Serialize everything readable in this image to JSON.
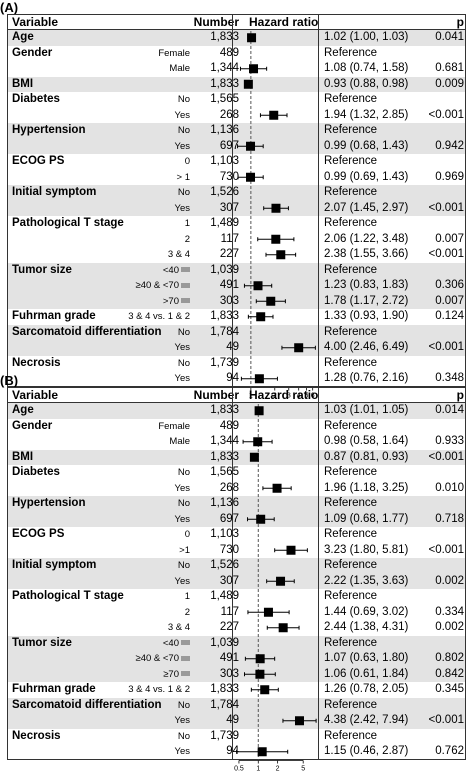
{
  "chart_data": [
    {
      "type": "forest",
      "panel": "(A)",
      "headers": {
        "variable": "Variable",
        "number": "Number",
        "hazard_ratio": "Hazard ratio",
        "p": "p"
      },
      "x_scale": "log",
      "xlim": [
        0.65,
        7
      ],
      "reference_line": 1,
      "x_ticks": [
        1,
        2,
        3,
        4,
        5,
        6
      ],
      "rows": [
        {
          "variable": "Age",
          "sub": "",
          "number": "1,833",
          "hr": 1.02,
          "lo": 1.0,
          "hi": 1.03,
          "hr_text": "1.02 (1.00, 1.03)",
          "p": "0.041"
        },
        {
          "variable": "Gender",
          "sub": "Female",
          "number": "489",
          "hr": null,
          "hr_text": "Reference",
          "p": ""
        },
        {
          "variable": "",
          "sub": "Male",
          "number": "1,344",
          "hr": 1.08,
          "lo": 0.74,
          "hi": 1.58,
          "hr_text": "1.08 (0.74, 1.58)",
          "p": "0.681"
        },
        {
          "variable": "BMI",
          "sub": "",
          "number": "1,833",
          "hr": 0.93,
          "lo": 0.88,
          "hi": 0.98,
          "hr_text": "0.93 (0.88, 0.98)",
          "p": "0.009"
        },
        {
          "variable": "Diabetes",
          "sub": "No",
          "number": "1,565",
          "hr": null,
          "hr_text": "Reference",
          "p": ""
        },
        {
          "variable": "",
          "sub": "Yes",
          "number": "268",
          "hr": 1.94,
          "lo": 1.32,
          "hi": 2.85,
          "hr_text": "1.94 (1.32, 2.85)",
          "p": "<0.001"
        },
        {
          "variable": "Hypertension",
          "sub": "No",
          "number": "1,136",
          "hr": null,
          "hr_text": "Reference",
          "p": ""
        },
        {
          "variable": "",
          "sub": "Yes",
          "number": "697",
          "hr": 0.99,
          "lo": 0.68,
          "hi": 1.43,
          "hr_text": "0.99 (0.68, 1.43)",
          "p": "0.942"
        },
        {
          "variable": "ECOG PS",
          "sub": "0",
          "number": "1,103",
          "hr": null,
          "hr_text": "Reference",
          "p": ""
        },
        {
          "variable": "",
          "sub": "> 1",
          "number": "730",
          "hr": 0.99,
          "lo": 0.69,
          "hi": 1.43,
          "hr_text": "0.99 (0.69, 1.43)",
          "p": "0.969"
        },
        {
          "variable": "Initial symptom",
          "sub": "No",
          "number": "1,526",
          "hr": null,
          "hr_text": "Reference",
          "p": ""
        },
        {
          "variable": "",
          "sub": "Yes",
          "number": "307",
          "hr": 2.07,
          "lo": 1.45,
          "hi": 2.97,
          "hr_text": "2.07 (1.45, 2.97)",
          "p": "<0.001"
        },
        {
          "variable": "Pathological T stage",
          "sub": "1",
          "number": "1,489",
          "hr": null,
          "hr_text": "Reference",
          "p": ""
        },
        {
          "variable": "",
          "sub": "2",
          "number": "117",
          "hr": 2.06,
          "lo": 1.22,
          "hi": 3.48,
          "hr_text": "2.06 (1.22, 3.48)",
          "p": "0.007"
        },
        {
          "variable": "",
          "sub": "3 & 4",
          "number": "227",
          "hr": 2.38,
          "lo": 1.55,
          "hi": 3.66,
          "hr_text": "2.38 (1.55, 3.66)",
          "p": "<0.001"
        },
        {
          "variable": "Tumor size",
          "sub": "<40",
          "number": "1,039",
          "hr": null,
          "hr_text": "Reference",
          "p": "",
          "mark": true
        },
        {
          "variable": "",
          "sub": "≥40 & <70",
          "number": "491",
          "hr": 1.23,
          "lo": 0.83,
          "hi": 1.83,
          "hr_text": "1.23 (0.83, 1.83)",
          "p": "0.306",
          "mark": true
        },
        {
          "variable": "",
          "sub": ">70",
          "number": "303",
          "hr": 1.78,
          "lo": 1.17,
          "hi": 2.72,
          "hr_text": "1.78 (1.17, 2.72)",
          "p": "0.007",
          "mark": true
        },
        {
          "variable": "Fuhrman grade",
          "sub": "3 & 4 vs. 1 & 2",
          "number": "1,833",
          "hr": 1.33,
          "lo": 0.93,
          "hi": 1.9,
          "hr_text": "1.33 (0.93, 1.90)",
          "p": "0.124"
        },
        {
          "variable": "Sarcomatoid differentiation",
          "sub": "No",
          "number": "1,784",
          "hr": null,
          "hr_text": "Reference",
          "p": ""
        },
        {
          "variable": "",
          "sub": "Yes",
          "number": "49",
          "hr": 4.0,
          "lo": 2.46,
          "hi": 6.49,
          "hr_text": "4.00 (2.46, 6.49)",
          "p": "<0.001"
        },
        {
          "variable": "Necrosis",
          "sub": "No",
          "number": "1,739",
          "hr": null,
          "hr_text": "Reference",
          "p": ""
        },
        {
          "variable": "",
          "sub": "Yes",
          "number": "94",
          "hr": 1.28,
          "lo": 0.76,
          "hi": 2.16,
          "hr_text": "1.28 (0.76, 2.16)",
          "p": "0.348"
        }
      ]
    },
    {
      "type": "forest",
      "panel": "(B)",
      "headers": {
        "variable": "Variable",
        "number": "Number",
        "hazard_ratio": "Hazard ratio",
        "p": "p"
      },
      "x_scale": "log",
      "xlim": [
        0.45,
        8.5
      ],
      "reference_line": 1,
      "x_ticks": [
        0.5,
        1,
        2,
        5
      ],
      "rows": [
        {
          "variable": "Age",
          "sub": "",
          "number": "1,833",
          "hr": 1.03,
          "lo": 1.01,
          "hi": 1.05,
          "hr_text": "1.03 (1.01, 1.05)",
          "p": "0.014"
        },
        {
          "variable": "Gender",
          "sub": "Female",
          "number": "489",
          "hr": null,
          "hr_text": "Reference",
          "p": ""
        },
        {
          "variable": "",
          "sub": "Male",
          "number": "1,344",
          "hr": 0.98,
          "lo": 0.58,
          "hi": 1.64,
          "hr_text": "0.98 (0.58, 1.64)",
          "p": "0.933"
        },
        {
          "variable": "BMI",
          "sub": "",
          "number": "1,833",
          "hr": 0.87,
          "lo": 0.81,
          "hi": 0.93,
          "hr_text": "0.87 (0.81, 0.93)",
          "p": "<0.001"
        },
        {
          "variable": "Diabetes",
          "sub": "No",
          "number": "1,565",
          "hr": null,
          "hr_text": "Reference",
          "p": ""
        },
        {
          "variable": "",
          "sub": "Yes",
          "number": "268",
          "hr": 1.96,
          "lo": 1.18,
          "hi": 3.25,
          "hr_text": "1.96 (1.18, 3.25)",
          "p": "0.010"
        },
        {
          "variable": "Hypertension",
          "sub": "No",
          "number": "1,136",
          "hr": null,
          "hr_text": "Reference",
          "p": ""
        },
        {
          "variable": "",
          "sub": "Yes",
          "number": "697",
          "hr": 1.09,
          "lo": 0.68,
          "hi": 1.77,
          "hr_text": "1.09 (0.68, 1.77)",
          "p": "0.718"
        },
        {
          "variable": "ECOG PS",
          "sub": "0",
          "number": "1,103",
          "hr": null,
          "hr_text": "Reference",
          "p": ""
        },
        {
          "variable": "",
          "sub": ">1",
          "number": "730",
          "hr": 3.23,
          "lo": 1.8,
          "hi": 5.81,
          "hr_text": "3.23 (1.80, 5.81)",
          "p": "<0.001"
        },
        {
          "variable": "Initial symptom",
          "sub": "No",
          "number": "1,526",
          "hr": null,
          "hr_text": "Reference",
          "p": ""
        },
        {
          "variable": "",
          "sub": "Yes",
          "number": "307",
          "hr": 2.22,
          "lo": 1.35,
          "hi": 3.63,
          "hr_text": "2.22 (1.35, 3.63)",
          "p": "0.002"
        },
        {
          "variable": "Pathological T stage",
          "sub": "1",
          "number": "1,489",
          "hr": null,
          "hr_text": "Reference",
          "p": ""
        },
        {
          "variable": "",
          "sub": "2",
          "number": "117",
          "hr": 1.44,
          "lo": 0.69,
          "hi": 3.02,
          "hr_text": "1.44 (0.69, 3.02)",
          "p": "0.334"
        },
        {
          "variable": "",
          "sub": "3 & 4",
          "number": "227",
          "hr": 2.44,
          "lo": 1.38,
          "hi": 4.31,
          "hr_text": "2.44 (1.38, 4.31)",
          "p": "0.002"
        },
        {
          "variable": "Tumor size",
          "sub": "<40",
          "number": "1,039",
          "hr": null,
          "hr_text": "Reference",
          "p": "",
          "mark": true
        },
        {
          "variable": "",
          "sub": "≥40 & <70",
          "number": "491",
          "hr": 1.07,
          "lo": 0.63,
          "hi": 1.8,
          "hr_text": "1.07 (0.63, 1.80)",
          "p": "0.802",
          "mark": true
        },
        {
          "variable": "",
          "sub": "≥70",
          "number": "303",
          "hr": 1.06,
          "lo": 0.61,
          "hi": 1.84,
          "hr_text": "1.06 (0.61, 1.84)",
          "p": "0.842",
          "mark": true
        },
        {
          "variable": "Fuhrman grade",
          "sub": "3 & 4 vs. 1 & 2",
          "number": "1,833",
          "hr": 1.26,
          "lo": 0.78,
          "hi": 2.05,
          "hr_text": "1.26 (0.78, 2.05)",
          "p": "0.345"
        },
        {
          "variable": "Sarcomatoid differentiation",
          "sub": "No",
          "number": "1,784",
          "hr": null,
          "hr_text": "Reference",
          "p": ""
        },
        {
          "variable": "",
          "sub": "Yes",
          "number": "49",
          "hr": 4.38,
          "lo": 2.42,
          "hi": 7.94,
          "hr_text": "4.38 (2.42, 7.94)",
          "p": "<0.001"
        },
        {
          "variable": "Necrosis",
          "sub": "No",
          "number": "1,739",
          "hr": null,
          "hr_text": "Reference",
          "p": ""
        },
        {
          "variable": "",
          "sub": "Yes",
          "number": "94",
          "hr": 1.15,
          "lo": 0.46,
          "hi": 2.87,
          "hr_text": "1.15 (0.46, 2.87)",
          "p": "0.762"
        }
      ]
    }
  ]
}
